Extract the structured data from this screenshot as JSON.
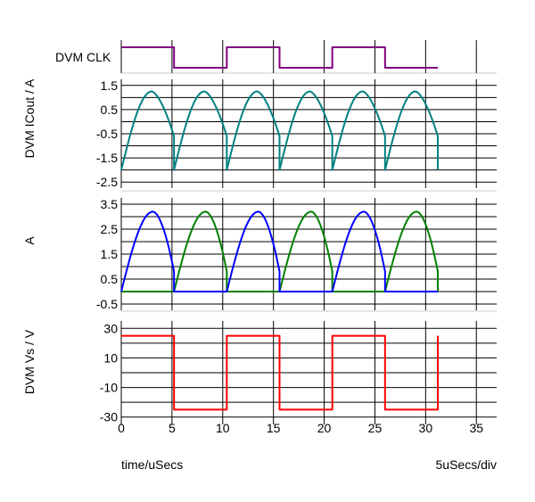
{
  "colors": {
    "clk": "#800080",
    "icout": "#008080",
    "a_blue": "#0000ff",
    "a_green": "#008000",
    "vs": "#ff0000",
    "grid": "#000000",
    "divider": "#c8c8c8"
  },
  "chart_data": [
    {
      "type": "line",
      "ylabel": "DVM CLK",
      "xlim": [
        0,
        37
      ],
      "grid": true,
      "series": [
        {
          "color": "#800080",
          "x": [
            0,
            5.2,
            5.2,
            10.4,
            10.4,
            15.6,
            15.6,
            20.8,
            20.8,
            26.0,
            26.0,
            31.2
          ],
          "y": [
            1,
            1,
            0,
            0,
            1,
            1,
            0,
            0,
            1,
            1,
            0,
            0
          ]
        }
      ]
    },
    {
      "type": "line",
      "ylabel": "DVM ICout / A",
      "xlim": [
        0,
        37
      ],
      "ylim": [
        -2.75,
        1.75
      ],
      "yticks": [
        "1.5",
        "0.5",
        "-0.5",
        "-1.5",
        "-2.5"
      ],
      "ytick_values": [
        1.5,
        0.5,
        -0.5,
        -1.5,
        -2.5
      ],
      "grid": true,
      "series": [
        {
          "color": "#008080",
          "period": 5.2,
          "cycles": 6,
          "x_start": 0,
          "y_min": -2.0,
          "y_peak": 1.25,
          "peak_x_offset": 3.0
        }
      ]
    },
    {
      "type": "line",
      "ylabel": "A",
      "xlim": [
        0,
        37
      ],
      "ylim": [
        -0.75,
        3.75
      ],
      "yticks": [
        "3.5",
        "2.5",
        "1.5",
        "0.5",
        "-0.5"
      ],
      "ytick_values": [
        3.5,
        2.5,
        1.5,
        0.5,
        -0.5
      ],
      "grid": true,
      "series": [
        {
          "color": "#0000ff",
          "arches_start": [
            0,
            10.4,
            20.8
          ],
          "arch_width": 5.2,
          "y_peak": 3.2,
          "baseline": 0,
          "x_end": 31.2
        },
        {
          "color": "#008000",
          "arches_start": [
            5.2,
            15.6,
            26.0
          ],
          "arch_width": 5.2,
          "y_peak": 3.2,
          "baseline": 0,
          "x_end": 31.2
        }
      ]
    },
    {
      "type": "line",
      "ylabel": "DVM Vs / V",
      "xlabel": "time/uSecs",
      "scale_note": "5uSecs/div",
      "xlim": [
        0,
        37
      ],
      "ylim": [
        -35,
        35
      ],
      "xticks": [
        "0",
        "5",
        "10",
        "15",
        "20",
        "25",
        "30",
        "35"
      ],
      "xtick_values": [
        0,
        5,
        10,
        15,
        20,
        25,
        30,
        35
      ],
      "yticks": [
        "30",
        "10",
        "-10",
        "-30"
      ],
      "ytick_values": [
        30,
        10,
        -10,
        -30
      ],
      "grid": true,
      "series": [
        {
          "color": "#ff0000",
          "x": [
            0,
            5.2,
            5.2,
            10.4,
            10.4,
            15.6,
            15.6,
            20.8,
            20.8,
            26.0,
            26.0,
            31.2,
            31.2
          ],
          "y": [
            25,
            25,
            -25,
            -25,
            25,
            25,
            -25,
            -25,
            25,
            25,
            -25,
            -25,
            25
          ]
        }
      ]
    }
  ]
}
